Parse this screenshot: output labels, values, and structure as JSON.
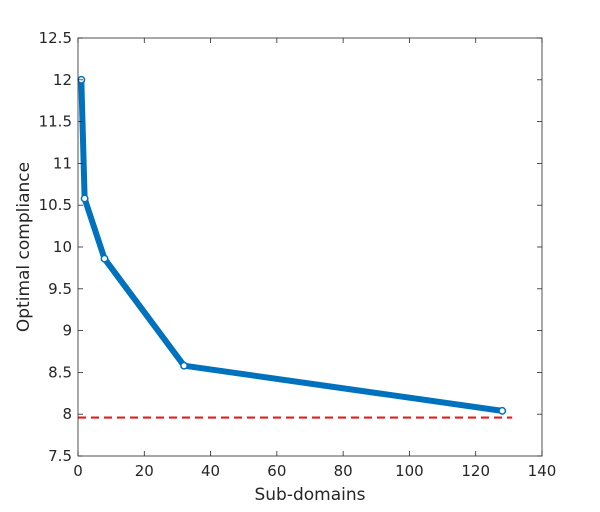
{
  "chart_data": {
    "type": "line",
    "title": "",
    "xlabel": "Sub-domains",
    "ylabel": "Optimal compliance",
    "xlim": [
      0,
      140
    ],
    "ylim": [
      7.5,
      12.5
    ],
    "xticks": [
      0,
      20,
      40,
      60,
      80,
      100,
      120,
      140
    ],
    "yticks": [
      7.5,
      8,
      8.5,
      9,
      9.5,
      10,
      10.5,
      11,
      11.5,
      12,
      12.5
    ],
    "grid": false,
    "legend": "none",
    "series": [
      {
        "x": [
          1,
          2,
          8,
          32,
          128
        ],
        "y": [
          12.0,
          10.58,
          9.86,
          8.58,
          8.04
        ],
        "color": "#0072BD",
        "style": "solid",
        "marker": "circle"
      }
    ],
    "reference_lines": [
      {
        "y": 7.96,
        "x_range": [
          0,
          131
        ],
        "color": "#E02020",
        "style": "dashed"
      }
    ]
  }
}
